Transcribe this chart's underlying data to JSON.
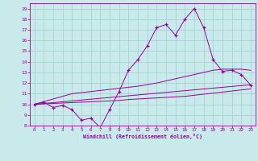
{
  "x_data": [
    0,
    1,
    2,
    3,
    4,
    5,
    6,
    7,
    8,
    9,
    10,
    11,
    12,
    13,
    14,
    15,
    16,
    17,
    18,
    19,
    20,
    21,
    22,
    23
  ],
  "y_main": [
    10.0,
    10.2,
    9.7,
    9.9,
    9.5,
    8.5,
    8.7,
    7.8,
    9.5,
    11.2,
    13.2,
    14.2,
    15.5,
    17.2,
    17.5,
    16.5,
    18.0,
    19.0,
    17.2,
    14.2,
    13.1,
    13.2,
    12.8,
    11.8
  ],
  "y_line1": [
    10.0,
    10.25,
    10.5,
    10.75,
    11.0,
    11.1,
    11.2,
    11.3,
    11.4,
    11.5,
    11.6,
    11.7,
    11.85,
    12.0,
    12.2,
    12.4,
    12.6,
    12.8,
    13.0,
    13.2,
    13.3,
    13.3,
    13.3,
    13.2
  ],
  "y_line2": [
    10.0,
    10.08,
    10.16,
    10.24,
    10.32,
    10.4,
    10.48,
    10.56,
    10.64,
    10.72,
    10.8,
    10.88,
    10.96,
    11.04,
    11.12,
    11.2,
    11.28,
    11.36,
    11.44,
    11.52,
    11.6,
    11.68,
    11.76,
    11.84
  ],
  "y_line3": [
    10.0,
    10.04,
    10.08,
    10.12,
    10.16,
    10.2,
    10.24,
    10.28,
    10.32,
    10.36,
    10.45,
    10.5,
    10.55,
    10.6,
    10.65,
    10.7,
    10.75,
    10.85,
    10.95,
    11.05,
    11.15,
    11.25,
    11.35,
    11.45
  ],
  "bg_color": "#c8eaea",
  "line_color": "#990099",
  "grid_color": "#a0cccc",
  "xlabel": "Windchill (Refroidissement éolien,°C)",
  "ylim": [
    8,
    19.5
  ],
  "xlim": [
    -0.5,
    23.5
  ],
  "yticks": [
    8,
    9,
    10,
    11,
    12,
    13,
    14,
    15,
    16,
    17,
    18,
    19
  ],
  "xticks": [
    0,
    1,
    2,
    3,
    4,
    5,
    6,
    7,
    8,
    9,
    10,
    11,
    12,
    13,
    14,
    15,
    16,
    17,
    18,
    19,
    20,
    21,
    22,
    23
  ]
}
